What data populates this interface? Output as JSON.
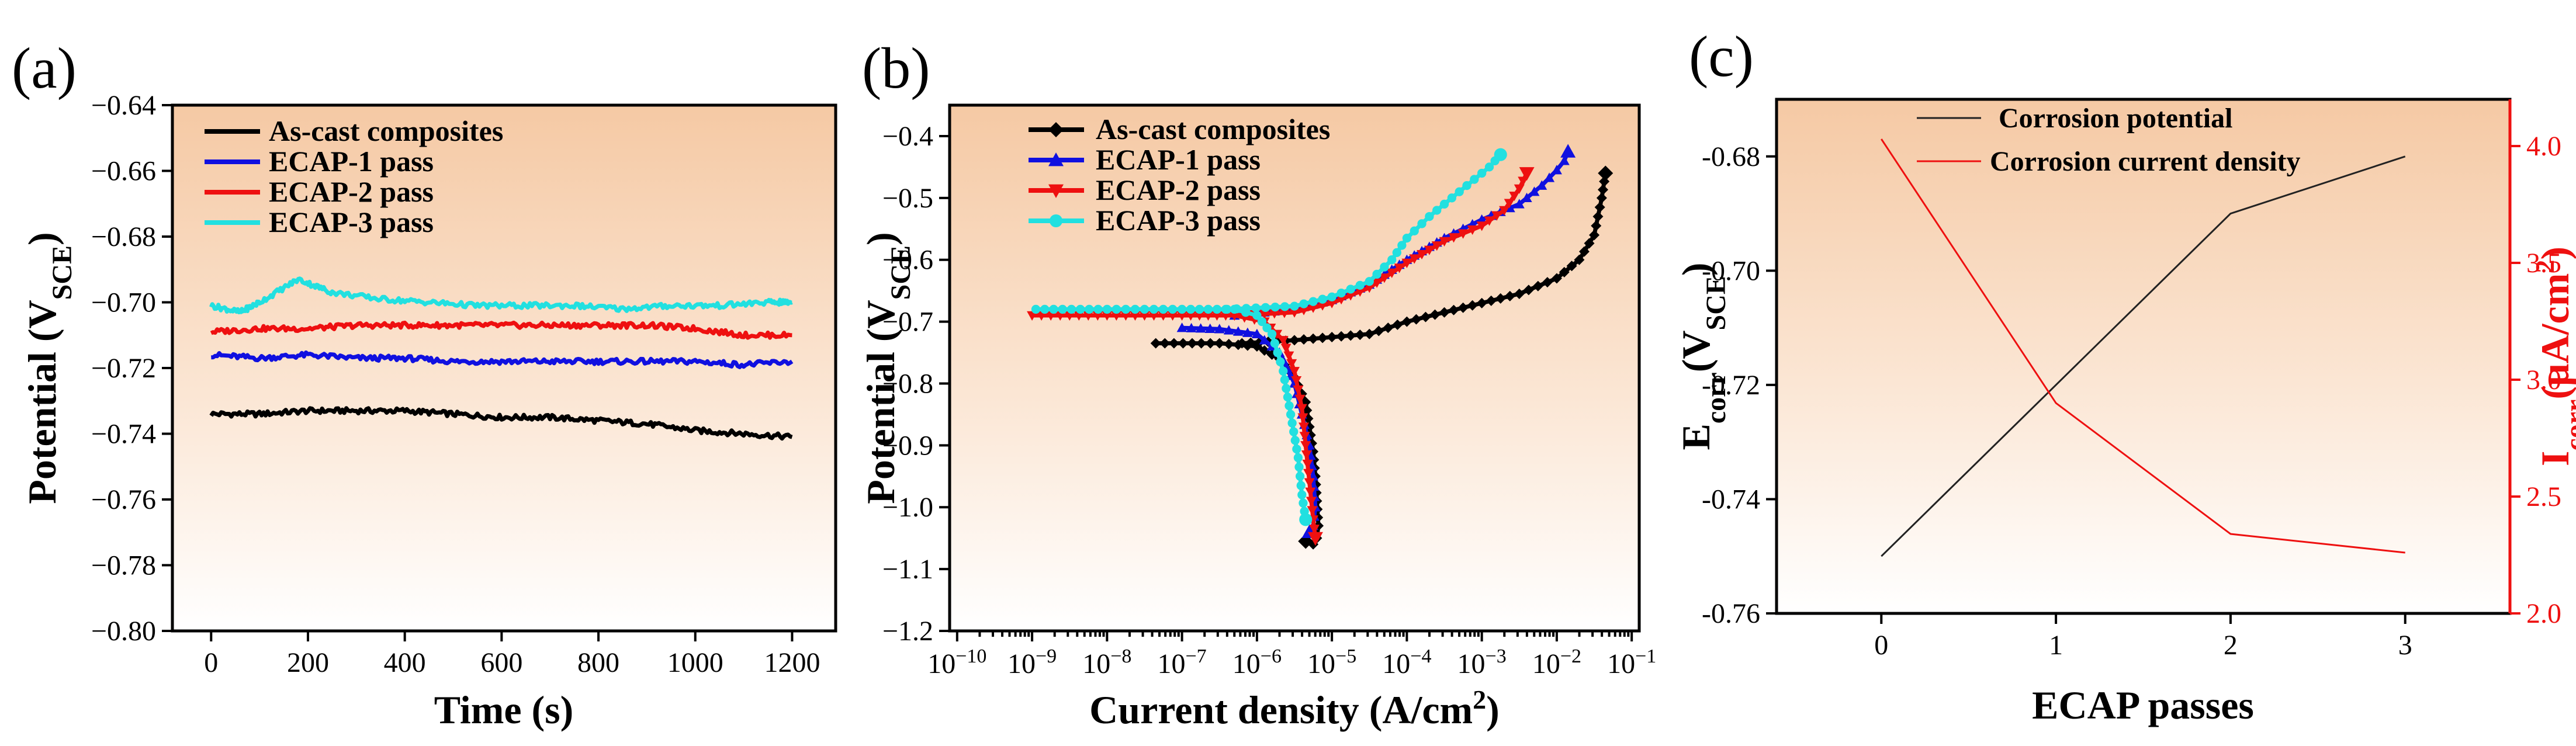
{
  "chart_data": [
    {
      "type": "line",
      "panel_label": "(a)",
      "xlabel": "Time (s)",
      "ylabel_main": "Potential (V",
      "ylabel_sub": "SCE",
      "ylabel_end": ")",
      "xlim": [
        -80,
        1290
      ],
      "ylim": [
        -0.8,
        -0.64
      ],
      "xticks": [
        0,
        200,
        400,
        600,
        800,
        1000,
        1200
      ],
      "xtick_labels": [
        "0",
        "200",
        "400",
        "600",
        "800",
        "1000",
        "1200"
      ],
      "yticks": [
        -0.8,
        -0.78,
        -0.76,
        -0.74,
        -0.72,
        -0.7,
        -0.68,
        -0.66,
        -0.64
      ],
      "ytick_labels": [
        "−0.80",
        "−0.78",
        "−0.76",
        "−0.74",
        "−0.72",
        "−0.70",
        "−0.68",
        "−0.66",
        "−0.64"
      ],
      "legend_position": "top-left",
      "series": [
        {
          "name": "As-cast composites",
          "color": "#000000",
          "x": [
            0,
            100,
            200,
            300,
            400,
            500,
            600,
            700,
            800,
            900,
            1000,
            1100,
            1200
          ],
          "y": [
            -0.734,
            -0.734,
            -0.733,
            -0.733,
            -0.733,
            -0.734,
            -0.735,
            -0.735,
            -0.736,
            -0.737,
            -0.739,
            -0.74,
            -0.741
          ]
        },
        {
          "name": "ECAP-1 pass",
          "color": "#1010e0",
          "x": [
            0,
            100,
            200,
            300,
            400,
            500,
            600,
            700,
            800,
            900,
            1000,
            1100,
            1200
          ],
          "y": [
            -0.716,
            -0.717,
            -0.716,
            -0.717,
            -0.717,
            -0.718,
            -0.718,
            -0.718,
            -0.718,
            -0.718,
            -0.718,
            -0.719,
            -0.718
          ]
        },
        {
          "name": "ECAP-2 pass",
          "color": "#ee1010",
          "x": [
            0,
            100,
            200,
            300,
            400,
            500,
            600,
            700,
            800,
            900,
            1000,
            1100,
            1200
          ],
          "y": [
            -0.709,
            -0.708,
            -0.708,
            -0.707,
            -0.707,
            -0.707,
            -0.707,
            -0.707,
            -0.707,
            -0.707,
            -0.708,
            -0.71,
            -0.71
          ]
        },
        {
          "name": "ECAP-3 pass",
          "color": "#22e0e0",
          "x": [
            0,
            60,
            100,
            180,
            250,
            350,
            450,
            550,
            650,
            750,
            850,
            950,
            1050,
            1150,
            1200
          ],
          "y": [
            -0.701,
            -0.703,
            -0.7,
            -0.693,
            -0.697,
            -0.699,
            -0.7,
            -0.701,
            -0.701,
            -0.701,
            -0.702,
            -0.701,
            -0.701,
            -0.7,
            -0.7
          ]
        }
      ]
    },
    {
      "type": "line",
      "panel_label": "(b)",
      "xlabel_main": "Current density (A/cm",
      "xlabel_sup": "2",
      "xlabel_end": ")",
      "ylabel_main": "Potential (V",
      "ylabel_sub": "SCE",
      "ylabel_end": ")",
      "x_scale": "log",
      "xlim_exp": [
        -10,
        -1
      ],
      "ylim": [
        -1.2,
        -0.35
      ],
      "xtick_exps": [
        -10,
        -9,
        -8,
        -7,
        -6,
        -5,
        -4,
        -3,
        -2,
        -1
      ],
      "xtick_base": "10",
      "xtick_sups": [
        "−10",
        "−9",
        "−8",
        "−7",
        "−6",
        "−5",
        "−4",
        "−3",
        "−2",
        "−1"
      ],
      "yticks": [
        -1.2,
        -1.1,
        -1.0,
        -0.9,
        -0.8,
        -0.7,
        -0.6,
        -0.5,
        -0.4
      ],
      "ytick_labels": [
        "−1.2",
        "−1.1",
        "−1.0",
        "−0.9",
        "−0.8",
        "−0.7",
        "−0.6",
        "−0.5",
        "−0.4"
      ],
      "legend_position": "top-left",
      "series": [
        {
          "name": "As-cast composites",
          "color": "#000000",
          "marker": "diamond",
          "cathodic": {
            "log_i": [
              -7.35,
              -6.5,
              -6.0,
              -5.7,
              -5.5,
              -5.35,
              -5.3,
              -5.25,
              -5.22,
              -5.2,
              -5.18,
              -5.2,
              -5.25,
              -5.35
            ],
            "E": [
              -0.735,
              -0.735,
              -0.74,
              -0.76,
              -0.79,
              -0.83,
              -0.87,
              -0.91,
              -0.95,
              -0.99,
              -1.03,
              -1.05,
              -1.06,
              -1.055
            ]
          },
          "anodic": {
            "log_i": [
              -6.2,
              -5.5,
              -5.0,
              -4.5,
              -4.0,
              -3.5,
              -3.0,
              -2.5,
              -2.0,
              -1.7,
              -1.5,
              -1.4,
              -1.35
            ],
            "E": [
              -0.735,
              -0.73,
              -0.725,
              -0.72,
              -0.7,
              -0.685,
              -0.67,
              -0.655,
              -0.63,
              -0.6,
              -0.56,
              -0.5,
              -0.46
            ]
          }
        },
        {
          "name": "ECAP-1 pass",
          "color": "#1010e0",
          "marker": "triangle-up",
          "cathodic": {
            "log_i": [
              -7.0,
              -6.5,
              -6.0,
              -5.7,
              -5.5,
              -5.4,
              -5.3,
              -5.25,
              -5.22,
              -5.25,
              -5.3
            ],
            "E": [
              -0.71,
              -0.712,
              -0.72,
              -0.75,
              -0.8,
              -0.85,
              -0.9,
              -0.95,
              -1.0,
              -1.03,
              -1.04
            ]
          },
          "anodic": {
            "log_i": [
              -6.3,
              -5.5,
              -5.0,
              -4.5,
              -4.0,
              -3.5,
              -3.0,
              -2.5,
              -2.2,
              -2.0,
              -1.9,
              -1.85
            ],
            "E": [
              -0.69,
              -0.68,
              -0.665,
              -0.64,
              -0.6,
              -0.565,
              -0.535,
              -0.51,
              -0.48,
              -0.455,
              -0.44,
              -0.425
            ]
          }
        },
        {
          "name": "ECAP-2 pass",
          "color": "#ee1010",
          "marker": "triangle-down",
          "cathodic": {
            "log_i": [
              -9.0,
              -8.0,
              -7.0,
              -6.3,
              -5.9,
              -5.65,
              -5.5,
              -5.4,
              -5.35,
              -5.3,
              -5.25,
              -5.22
            ],
            "E": [
              -0.69,
              -0.69,
              -0.69,
              -0.69,
              -0.7,
              -0.73,
              -0.78,
              -0.84,
              -0.9,
              -0.96,
              -1.02,
              -1.05
            ]
          },
          "anodic": {
            "log_i": [
              -6.3,
              -5.5,
              -5.0,
              -4.5,
              -4.0,
              -3.5,
              -3.0,
              -2.7,
              -2.5,
              -2.4
            ],
            "E": [
              -0.69,
              -0.685,
              -0.67,
              -0.645,
              -0.605,
              -0.57,
              -0.545,
              -0.52,
              -0.485,
              -0.46
            ]
          }
        },
        {
          "name": "ECAP-3 pass",
          "color": "#22e0e0",
          "marker": "circle",
          "cathodic": {
            "log_i": [
              -8.95,
              -8.0,
              -7.0,
              -6.3,
              -6.0,
              -5.8,
              -5.65,
              -5.55,
              -5.45,
              -5.4,
              -5.35
            ],
            "E": [
              -0.68,
              -0.68,
              -0.68,
              -0.68,
              -0.69,
              -0.72,
              -0.78,
              -0.85,
              -0.92,
              -0.98,
              -1.02
            ]
          },
          "anodic": {
            "log_i": [
              -6.4,
              -5.5,
              -5.0,
              -4.5,
              -4.2,
              -4.0,
              -3.7,
              -3.4,
              -3.1,
              -2.9,
              -2.75
            ],
            "E": [
              -0.68,
              -0.675,
              -0.66,
              -0.635,
              -0.6,
              -0.565,
              -0.53,
              -0.5,
              -0.47,
              -0.45,
              -0.43
            ]
          }
        }
      ]
    },
    {
      "type": "line",
      "panel_label": "(c)",
      "xlabel": "ECAP passes",
      "ylabel_left": {
        "main": "E",
        "sub1": "corr",
        "mid": "(V",
        "sub2": "SCE",
        "end": ")"
      },
      "ylabel_right": {
        "main": "I",
        "sub1": "corr",
        "mid": "(μA/cm",
        "sup": "2",
        "end": ")"
      },
      "xlim": [
        -0.6,
        3.6
      ],
      "xticks": [
        0,
        1,
        2,
        3
      ],
      "xtick_labels": [
        "0",
        "1",
        "2",
        "3"
      ],
      "ylim_left": [
        -0.76,
        -0.67
      ],
      "yticks_left": [
        -0.76,
        -0.74,
        -0.72,
        -0.7,
        -0.68
      ],
      "ytick_labels_left": [
        "-0.76",
        "-0.74",
        "-0.72",
        "-0.70",
        "-0.68"
      ],
      "ylim_right": [
        2.0,
        4.2
      ],
      "yticks_right": [
        2.0,
        2.5,
        3.0,
        3.5,
        4.0
      ],
      "ytick_labels_right": [
        "2.0",
        "2.5",
        "3.0",
        "3.5",
        "4.0"
      ],
      "legend_position": "top",
      "series": [
        {
          "name": "Corrosion potential",
          "color": "#222222",
          "axis": "left",
          "x": [
            0,
            1,
            2,
            3
          ],
          "y": [
            -0.75,
            -0.72,
            -0.69,
            -0.68
          ]
        },
        {
          "name": "Corrosion current density",
          "color": "#ee1010",
          "axis": "right",
          "x": [
            0,
            1,
            2,
            3
          ],
          "y": [
            4.03,
            2.9,
            2.34,
            2.26
          ]
        }
      ]
    }
  ]
}
